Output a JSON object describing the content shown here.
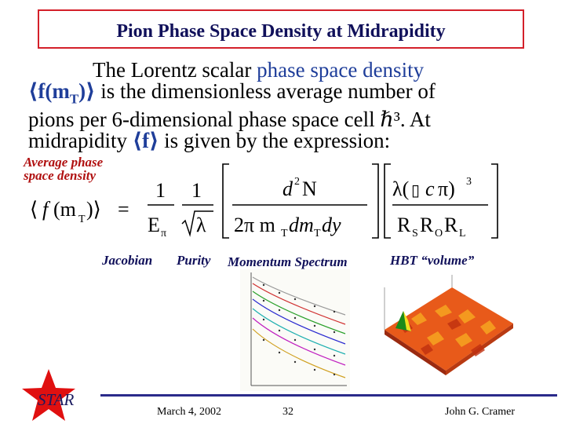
{
  "title": "Pion Phase Space Density at Midrapidity",
  "paragraph": {
    "line1_a": "The Lorentz scalar ",
    "line1_b": "phase space density",
    "line2_bra": "⟨",
    "line2_f": "f(m",
    "line2_sub": "T",
    "line2_close": ")",
    "line2_ket": "⟩",
    "line2_rest": " is the dimensionless average number of",
    "line3": "pions per 6-dimensional phase space cell ℏ³. At",
    "line4_a": "midrapidity ",
    "line4_bra": "⟨",
    "line4_f": "f",
    "line4_ket": "⟩",
    "line4_b": "  is given by the expression:"
  },
  "avg_label_1": "Average phase",
  "avg_label_2": "space density",
  "labels": {
    "jacobian": "Jacobian",
    "purity": "Purity",
    "momentum": "Momentum Spectrum",
    "hbt": "HBT “volume”"
  },
  "footer": {
    "logo": "STAR",
    "date": "March 4, 2002",
    "page": "32",
    "author": "John G. Cramer"
  },
  "colors": {
    "title_border": "#d4202a",
    "title_text": "#10105a",
    "blue_text": "#1f3e9a",
    "red_label": "#b01010",
    "star": "#e01010"
  }
}
